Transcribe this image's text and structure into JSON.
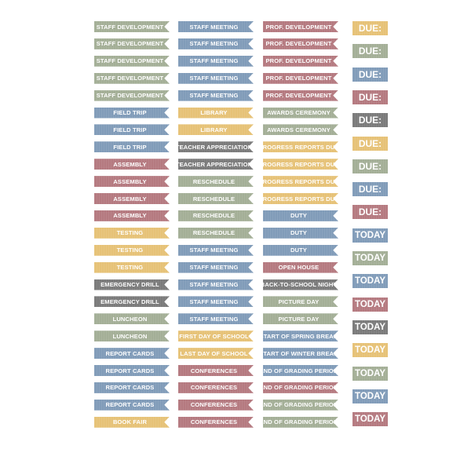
{
  "colors": {
    "sage": "#a4af97",
    "blue": "#819cb9",
    "rose": "#b57a80",
    "mustard": "#e6c277",
    "gray": "#7b7b7b"
  },
  "columns": [
    {
      "items": [
        {
          "text": "STAFF DEVELOPMENT",
          "color": "sage"
        },
        {
          "text": "STAFF DEVELOPMENT",
          "color": "sage"
        },
        {
          "text": "STAFF DEVELOPMENT",
          "color": "sage"
        },
        {
          "text": "STAFF DEVELOPMENT",
          "color": "sage"
        },
        {
          "text": "STAFF DEVELOPMENT",
          "color": "sage"
        },
        {
          "text": "FIELD TRIP",
          "color": "blue"
        },
        {
          "text": "FIELD TRIP",
          "color": "blue"
        },
        {
          "text": "FIELD TRIP",
          "color": "blue"
        },
        {
          "text": "ASSEMBLY",
          "color": "rose"
        },
        {
          "text": "ASSEMBLY",
          "color": "rose"
        },
        {
          "text": "ASSEMBLY",
          "color": "rose"
        },
        {
          "text": "ASSEMBLY",
          "color": "rose"
        },
        {
          "text": "TESTING",
          "color": "mustard"
        },
        {
          "text": "TESTING",
          "color": "mustard"
        },
        {
          "text": "TESTING",
          "color": "mustard"
        },
        {
          "text": "EMERGENCY DRILL",
          "color": "gray"
        },
        {
          "text": "EMERGENCY DRILL",
          "color": "gray"
        },
        {
          "text": "LUNCHEON",
          "color": "sage"
        },
        {
          "text": "LUNCHEON",
          "color": "sage"
        },
        {
          "text": "REPORT CARDS",
          "color": "blue"
        },
        {
          "text": "REPORT CARDS",
          "color": "blue"
        },
        {
          "text": "REPORT CARDS",
          "color": "blue"
        },
        {
          "text": "REPORT CARDS",
          "color": "blue"
        },
        {
          "text": "BOOK FAIR",
          "color": "mustard"
        }
      ]
    },
    {
      "items": [
        {
          "text": "STAFF MEETING",
          "color": "blue"
        },
        {
          "text": "STAFF MEETING",
          "color": "blue"
        },
        {
          "text": "STAFF MEETING",
          "color": "blue"
        },
        {
          "text": "STAFF MEETING",
          "color": "blue"
        },
        {
          "text": "STAFF MEETING",
          "color": "blue"
        },
        {
          "text": "LIBRARY",
          "color": "mustard"
        },
        {
          "text": "LIBRARY",
          "color": "mustard"
        },
        {
          "text": "TEACHER APPRECIATION",
          "color": "gray"
        },
        {
          "text": "TEACHER APPRECIATION",
          "color": "gray"
        },
        {
          "text": "RESCHEDULE",
          "color": "sage"
        },
        {
          "text": "RESCHEDULE",
          "color": "sage"
        },
        {
          "text": "RESCHEDULE",
          "color": "sage"
        },
        {
          "text": "RESCHEDULE",
          "color": "sage"
        },
        {
          "text": "STAFF MEETING",
          "color": "blue"
        },
        {
          "text": "STAFF MEETING",
          "color": "blue"
        },
        {
          "text": "STAFF MEETING",
          "color": "blue"
        },
        {
          "text": "STAFF MEETING",
          "color": "blue"
        },
        {
          "text": "STAFF MEETING",
          "color": "blue"
        },
        {
          "text": "FIRST DAY OF SCHOOL",
          "color": "mustard"
        },
        {
          "text": "LAST DAY OF SCHOOL",
          "color": "mustard"
        },
        {
          "text": "CONFERENCES",
          "color": "rose"
        },
        {
          "text": "CONFERENCES",
          "color": "rose"
        },
        {
          "text": "CONFERENCES",
          "color": "rose"
        },
        {
          "text": "CONFERENCES",
          "color": "rose"
        }
      ]
    },
    {
      "items": [
        {
          "text": "PROF. DEVELOPMENT",
          "color": "rose"
        },
        {
          "text": "PROF. DEVELOPMENT",
          "color": "rose"
        },
        {
          "text": "PROF. DEVELOPMENT",
          "color": "rose"
        },
        {
          "text": "PROF. DEVELOPMENT",
          "color": "rose"
        },
        {
          "text": "PROF. DEVELOPMENT",
          "color": "rose"
        },
        {
          "text": "AWARDS CEREMONY",
          "color": "sage"
        },
        {
          "text": "AWARDS CEREMONY",
          "color": "sage"
        },
        {
          "text": "PROGRESS REPORTS DUE",
          "color": "mustard"
        },
        {
          "text": "PROGRESS REPORTS DUE",
          "color": "mustard"
        },
        {
          "text": "PROGRESS REPORTS DUE",
          "color": "mustard"
        },
        {
          "text": "PROGRESS REPORTS DUE",
          "color": "mustard"
        },
        {
          "text": "DUTY",
          "color": "blue"
        },
        {
          "text": "DUTY",
          "color": "blue"
        },
        {
          "text": "DUTY",
          "color": "blue"
        },
        {
          "text": "OPEN HOUSE",
          "color": "rose"
        },
        {
          "text": "BACK-TO-SCHOOL NIGHT",
          "color": "gray"
        },
        {
          "text": "PICTURE DAY",
          "color": "sage"
        },
        {
          "text": "PICTURE DAY",
          "color": "sage"
        },
        {
          "text": "START OF SPRING BREAK",
          "color": "blue"
        },
        {
          "text": "START OF WINTER BREAK",
          "color": "blue"
        },
        {
          "text": "END OF GRADING PERIOD",
          "color": "blue"
        },
        {
          "text": "END OF GRADING PERIOD",
          "color": "rose"
        },
        {
          "text": "END OF GRADING PERIOD",
          "color": "sage"
        },
        {
          "text": "END OF GRADING PERIOD",
          "color": "sage"
        }
      ]
    }
  ],
  "tags": [
    {
      "text": "DUE:",
      "color": "mustard"
    },
    {
      "text": "DUE:",
      "color": "sage"
    },
    {
      "text": "DUE:",
      "color": "blue"
    },
    {
      "text": "DUE:",
      "color": "rose"
    },
    {
      "text": "DUE:",
      "color": "gray"
    },
    {
      "text": "DUE:",
      "color": "mustard"
    },
    {
      "text": "DUE:",
      "color": "sage"
    },
    {
      "text": "DUE:",
      "color": "blue"
    },
    {
      "text": "DUE:",
      "color": "rose"
    },
    {
      "text": "TODAY",
      "color": "blue"
    },
    {
      "text": "TODAY",
      "color": "sage"
    },
    {
      "text": "TODAY",
      "color": "blue"
    },
    {
      "text": "TODAY",
      "color": "rose"
    },
    {
      "text": "TODAY",
      "color": "gray"
    },
    {
      "text": "TODAY",
      "color": "mustard"
    },
    {
      "text": "TODAY",
      "color": "sage"
    },
    {
      "text": "TODAY",
      "color": "blue"
    },
    {
      "text": "TODAY",
      "color": "rose"
    }
  ]
}
